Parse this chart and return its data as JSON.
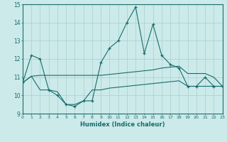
{
  "xlabel": "Humidex (Indice chaleur)",
  "xlim": [
    0,
    23
  ],
  "ylim": [
    9,
    15
  ],
  "yticks": [
    9,
    10,
    11,
    12,
    13,
    14,
    15
  ],
  "xticks": [
    0,
    1,
    2,
    3,
    4,
    5,
    6,
    7,
    8,
    9,
    10,
    11,
    12,
    13,
    14,
    15,
    16,
    17,
    18,
    19,
    20,
    21,
    22,
    23
  ],
  "bg_color": "#cceaea",
  "grid_color": "#aacece",
  "line_color": "#1a6b6b",
  "line1_x": [
    0,
    1,
    2,
    3,
    4,
    5,
    6,
    7,
    8,
    9,
    10,
    11,
    12,
    13,
    14,
    15,
    16,
    17,
    18,
    19,
    20,
    21,
    22,
    23
  ],
  "line1_y": [
    10.7,
    12.2,
    12.0,
    10.3,
    10.0,
    9.5,
    9.4,
    9.7,
    9.7,
    11.8,
    12.6,
    13.0,
    14.0,
    14.85,
    12.3,
    13.9,
    12.2,
    11.7,
    11.5,
    10.5,
    10.5,
    11.0,
    10.5,
    10.5
  ],
  "line2_x": [
    0,
    1,
    2,
    3,
    4,
    5,
    6,
    7,
    8,
    9,
    10,
    11,
    12,
    13,
    14,
    15,
    16,
    17,
    18,
    19,
    20,
    21,
    22,
    23
  ],
  "line2_y": [
    10.7,
    11.05,
    11.1,
    11.1,
    11.1,
    11.1,
    11.1,
    11.1,
    11.1,
    11.1,
    11.15,
    11.2,
    11.25,
    11.3,
    11.35,
    11.4,
    11.5,
    11.55,
    11.6,
    11.2,
    11.2,
    11.2,
    11.0,
    10.5
  ],
  "line3_x": [
    0,
    1,
    2,
    3,
    4,
    5,
    6,
    7,
    8,
    9,
    10,
    11,
    12,
    13,
    14,
    15,
    16,
    17,
    18,
    19,
    20,
    21,
    22,
    23
  ],
  "line3_y": [
    10.7,
    11.05,
    10.3,
    10.3,
    10.2,
    9.5,
    9.5,
    9.7,
    10.3,
    10.3,
    10.4,
    10.45,
    10.5,
    10.55,
    10.6,
    10.65,
    10.7,
    10.75,
    10.8,
    10.5,
    10.5,
    10.5,
    10.5,
    10.5
  ]
}
